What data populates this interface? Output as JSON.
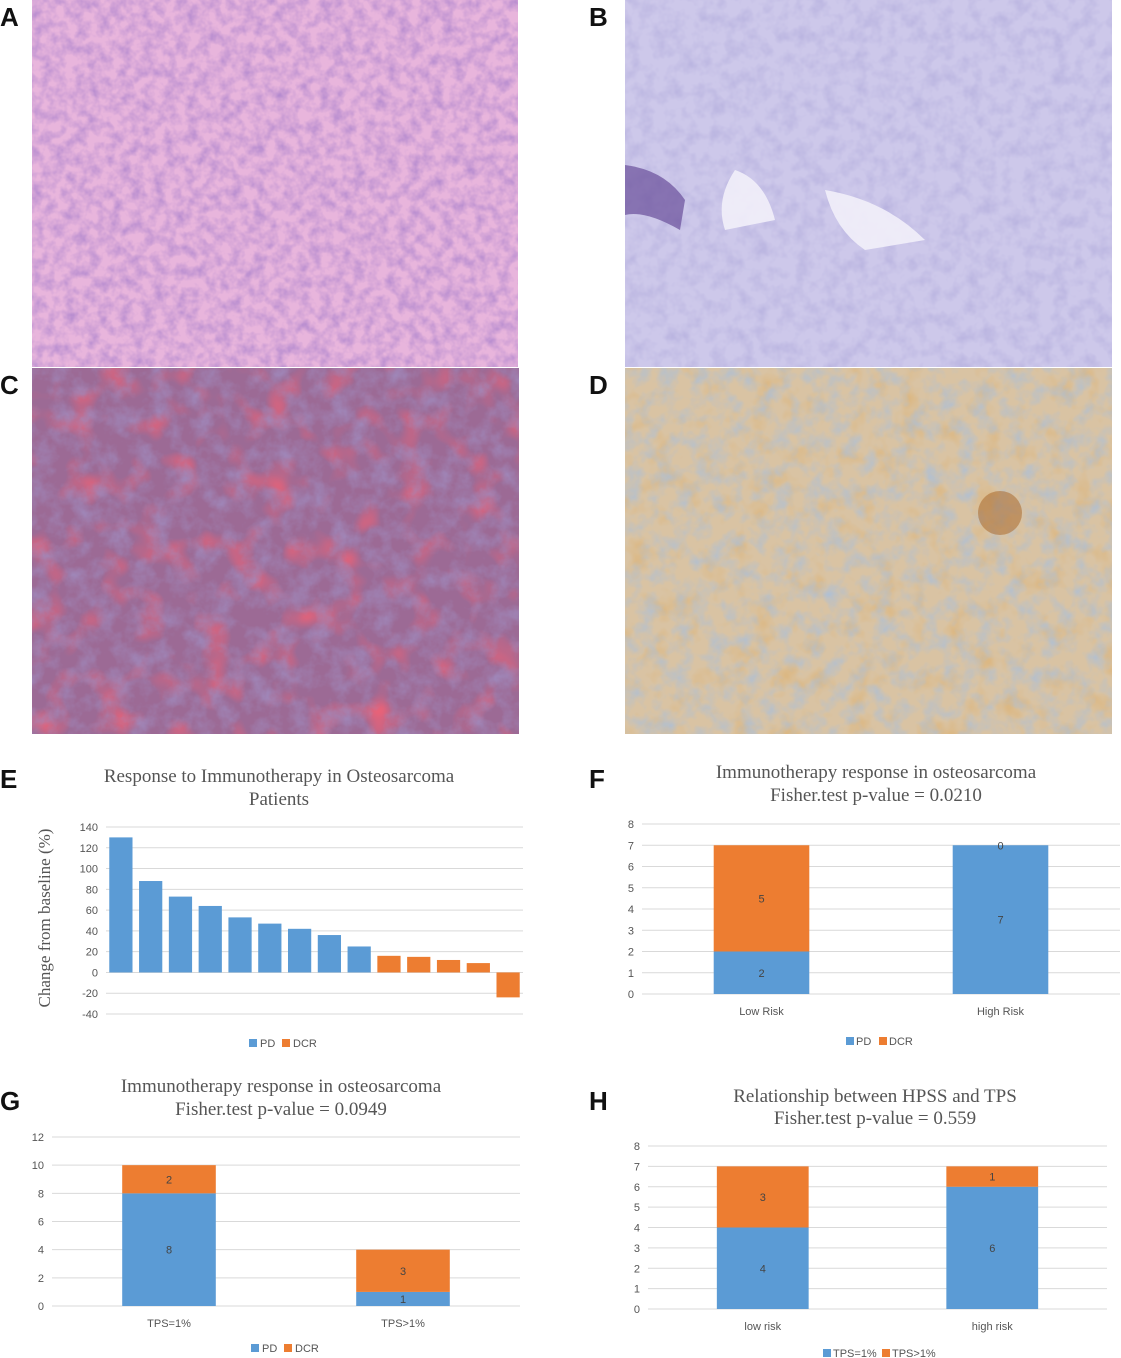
{
  "panels": {
    "A": "A",
    "B": "B",
    "C": "C",
    "D": "D",
    "E": "E",
    "F": "F",
    "G": "G",
    "H": "H"
  },
  "colors": {
    "pd": "#5b9bd5",
    "dcr": "#ed7d31",
    "he_stain": "#e8b5dc",
    "ihc_negative": "#c9c3e8",
    "he_hemorrhagic": "#b85a78",
    "ihc_positive": "#d9b894"
  },
  "chart_data": [
    {
      "id": "E",
      "type": "bar",
      "title": [
        "Response to Immunotherapy in Osteosarcoma",
        "Patients"
      ],
      "ylabel": "Change from baseline (%)",
      "ylim": [
        -40,
        140
      ],
      "yticks": [
        -40,
        -20,
        0,
        20,
        40,
        60,
        80,
        100,
        120,
        140
      ],
      "grid": true,
      "legend_position": "bottom",
      "legend": [
        "PD",
        "DCR"
      ],
      "values": [
        130,
        88,
        73,
        64,
        53,
        47,
        42,
        36,
        25,
        16,
        15,
        12,
        9,
        -24
      ],
      "groups": [
        "PD",
        "PD",
        "PD",
        "PD",
        "PD",
        "PD",
        "PD",
        "PD",
        "PD",
        "DCR",
        "DCR",
        "DCR",
        "DCR",
        "DCR"
      ]
    },
    {
      "id": "F",
      "type": "bar",
      "stacked": true,
      "title": [
        "Immunotherapy response in osteosarcoma",
        "Fisher.test p-value = 0.0210"
      ],
      "ylim": [
        0,
        8
      ],
      "yticks": [
        0,
        1,
        2,
        3,
        4,
        5,
        6,
        7,
        8
      ],
      "grid": true,
      "legend_position": "bottom",
      "categories": [
        "Low Risk",
        "High Risk"
      ],
      "series": [
        {
          "name": "PD",
          "values": [
            2,
            7
          ]
        },
        {
          "name": "DCR",
          "values": [
            5,
            0
          ]
        }
      ]
    },
    {
      "id": "G",
      "type": "bar",
      "stacked": true,
      "title": [
        "Immunotherapy response in osteosarcoma",
        "Fisher.test p-value = 0.0949"
      ],
      "ylim": [
        0,
        12
      ],
      "yticks": [
        0,
        2,
        4,
        6,
        8,
        10,
        12
      ],
      "grid": true,
      "legend_position": "bottom",
      "categories": [
        "TPS=1%",
        "TPS>1%"
      ],
      "series": [
        {
          "name": "PD",
          "values": [
            8,
            1
          ]
        },
        {
          "name": "DCR",
          "values": [
            2,
            3
          ]
        }
      ]
    },
    {
      "id": "H",
      "type": "bar",
      "stacked": true,
      "title": [
        "Relationship between HPSS and TPS",
        "Fisher.test p-value = 0.559"
      ],
      "ylim": [
        0,
        8
      ],
      "yticks": [
        0,
        1,
        2,
        3,
        4,
        5,
        6,
        7,
        8
      ],
      "grid": true,
      "legend_position": "bottom",
      "categories": [
        "low risk",
        "high risk"
      ],
      "series": [
        {
          "name": "TPS=1%",
          "values": [
            4,
            6
          ]
        },
        {
          "name": "TPS>1%",
          "values": [
            3,
            1
          ]
        }
      ]
    }
  ]
}
